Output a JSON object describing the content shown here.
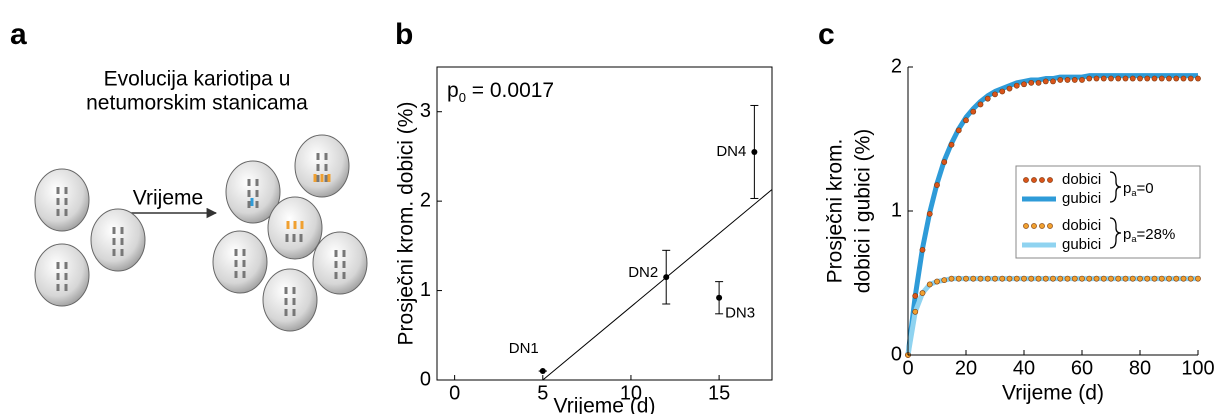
{
  "diagram": {
    "label": "a",
    "title_lines": [
      "Evolucija kariotipa u",
      "netumorskim stanicama"
    ],
    "arrow_label": "Vrijeme"
  },
  "chart_data": [
    {
      "type": "scatter",
      "panel_label": "b",
      "annotation": {
        "symbol": "p",
        "subscript": "0",
        "text": " = 0.0017"
      },
      "xlabel": "Vrijeme (d)",
      "ylabel": "Prosječni krom. dobici (%)",
      "points": {
        "labels": [
          "DN1",
          "DN2",
          "DN3",
          "DN4"
        ],
        "x": [
          5,
          12,
          15,
          17
        ],
        "values": [
          0.1,
          1.15,
          0.92,
          2.55
        ],
        "errors": [
          0,
          0.3,
          0.18,
          0.52
        ],
        "color": "#000000"
      },
      "fit": {
        "x": [
          5,
          18
        ],
        "values": [
          0,
          2.13
        ],
        "color": "#000000"
      },
      "xlim": [
        -1,
        18
      ],
      "ylim": [
        0,
        3.5
      ],
      "xticks": [
        0,
        5,
        10,
        15
      ],
      "yticks": [
        0,
        1,
        2,
        3
      ],
      "box": true
    },
    {
      "type": "line",
      "panel_label": "c",
      "xlabel": "Vrijeme (d)",
      "ylabel": [
        "Prosječni krom.",
        "dobici i gubici (%)"
      ],
      "x": [
        0,
        2.5,
        5,
        7.5,
        10,
        12.5,
        15,
        17.5,
        20,
        22.5,
        25,
        27.5,
        30,
        32.5,
        35,
        37.5,
        40,
        42.5,
        45,
        47.5,
        50,
        52.5,
        55,
        57.5,
        60,
        62.5,
        65,
        67.5,
        70,
        72.5,
        75,
        77.5,
        80,
        82.5,
        85,
        87.5,
        90,
        92.5,
        95,
        97.5,
        100
      ],
      "series": [
        {
          "name": "gubici",
          "group": 0,
          "style": "line",
          "color": "#2e9bd8",
          "values": [
            0,
            0.41,
            0.74,
            0.99,
            1.19,
            1.35,
            1.47,
            1.57,
            1.65,
            1.71,
            1.76,
            1.8,
            1.83,
            1.85,
            1.87,
            1.89,
            1.9,
            1.91,
            1.91,
            1.92,
            1.92,
            1.93,
            1.93,
            1.93,
            1.93,
            1.94,
            1.94,
            1.94,
            1.94,
            1.94,
            1.94,
            1.94,
            1.94,
            1.94,
            1.94,
            1.94,
            1.94,
            1.94,
            1.94,
            1.94,
            1.94
          ]
        },
        {
          "name": "dobici",
          "group": 0,
          "style": "dots",
          "color": "#d9541a",
          "values": [
            0,
            0.41,
            0.73,
            0.98,
            1.18,
            1.34,
            1.46,
            1.56,
            1.63,
            1.69,
            1.74,
            1.78,
            1.81,
            1.83,
            1.85,
            1.87,
            1.88,
            1.89,
            1.89,
            1.9,
            1.9,
            1.91,
            1.91,
            1.91,
            1.91,
            1.92,
            1.92,
            1.92,
            1.92,
            1.92,
            1.92,
            1.92,
            1.92,
            1.92,
            1.92,
            1.92,
            1.92,
            1.92,
            1.92,
            1.92,
            1.92
          ]
        },
        {
          "name": "gubici",
          "group": 1,
          "style": "line",
          "color": "#8fd3f0",
          "values": [
            0,
            0.3,
            0.43,
            0.49,
            0.51,
            0.52,
            0.53,
            0.53,
            0.53,
            0.53,
            0.53,
            0.53,
            0.53,
            0.53,
            0.53,
            0.53,
            0.53,
            0.53,
            0.53,
            0.53,
            0.53,
            0.53,
            0.53,
            0.53,
            0.53,
            0.53,
            0.53,
            0.53,
            0.53,
            0.53,
            0.53,
            0.53,
            0.53,
            0.53,
            0.53,
            0.53,
            0.53,
            0.53,
            0.53,
            0.53,
            0.53
          ]
        },
        {
          "name": "dobici",
          "group": 1,
          "style": "dots",
          "color": "#f0a030",
          "values": [
            0,
            0.3,
            0.43,
            0.49,
            0.51,
            0.52,
            0.53,
            0.53,
            0.53,
            0.53,
            0.53,
            0.53,
            0.53,
            0.53,
            0.53,
            0.53,
            0.53,
            0.53,
            0.53,
            0.53,
            0.53,
            0.53,
            0.53,
            0.53,
            0.53,
            0.53,
            0.53,
            0.53,
            0.53,
            0.53,
            0.53,
            0.53,
            0.53,
            0.53,
            0.53,
            0.53,
            0.53,
            0.53,
            0.53,
            0.53,
            0.53
          ]
        }
      ],
      "legend_groups": [
        {
          "symbol": "p",
          "subscript": "a",
          "text": "=0"
        },
        {
          "symbol": "p",
          "subscript": "a",
          "text": "=28%"
        }
      ],
      "xlim": [
        0,
        100
      ],
      "ylim": [
        0,
        2
      ],
      "xticks": [
        0,
        20,
        40,
        60,
        80,
        100
      ],
      "yticks": [
        0,
        1,
        2
      ],
      "box": false
    }
  ]
}
